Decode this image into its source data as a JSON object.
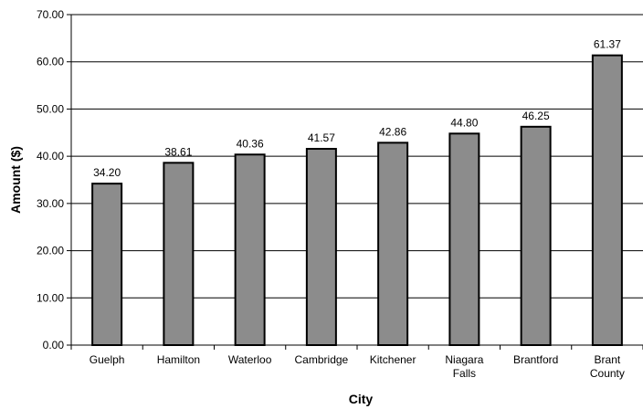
{
  "chart_data": {
    "type": "bar",
    "title": "",
    "xlabel": "City",
    "ylabel": "Amount ($)",
    "ylim": [
      0,
      70
    ],
    "yticks": [
      0,
      10,
      20,
      30,
      40,
      50,
      60,
      70
    ],
    "ytick_labels": [
      "0.00",
      "10.00",
      "20.00",
      "30.00",
      "40.00",
      "50.00",
      "60.00",
      "70.00"
    ],
    "grid": true,
    "legend": "none",
    "categories": [
      [
        "Guelph"
      ],
      [
        "Hamilton"
      ],
      [
        "Waterloo"
      ],
      [
        "Cambridge"
      ],
      [
        "Kitchener"
      ],
      [
        "Niagara",
        "Falls"
      ],
      [
        "Brantford"
      ],
      [
        "Brant",
        "County"
      ]
    ],
    "values": [
      34.2,
      38.61,
      40.36,
      41.57,
      42.86,
      44.8,
      46.25,
      61.37
    ],
    "value_labels": [
      "34.20",
      "38.61",
      "40.36",
      "41.57",
      "42.86",
      "44.80",
      "46.25",
      "61.37"
    ],
    "bar_color": "#8c8c8c",
    "bar_edge_color": "#000000"
  }
}
